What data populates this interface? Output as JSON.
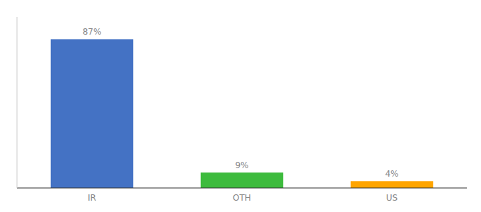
{
  "chart_data": {
    "type": "bar",
    "categories": [
      "IR",
      "OTH",
      "US"
    ],
    "values": [
      87,
      9,
      4
    ],
    "value_labels": [
      "87%",
      "9%",
      "4%"
    ],
    "colors": [
      "#4472c4",
      "#3dbb3d",
      "#ffa500"
    ],
    "ylim": [
      0,
      100
    ],
    "data_labels": true,
    "tick_labels": "x",
    "grid": false
  }
}
